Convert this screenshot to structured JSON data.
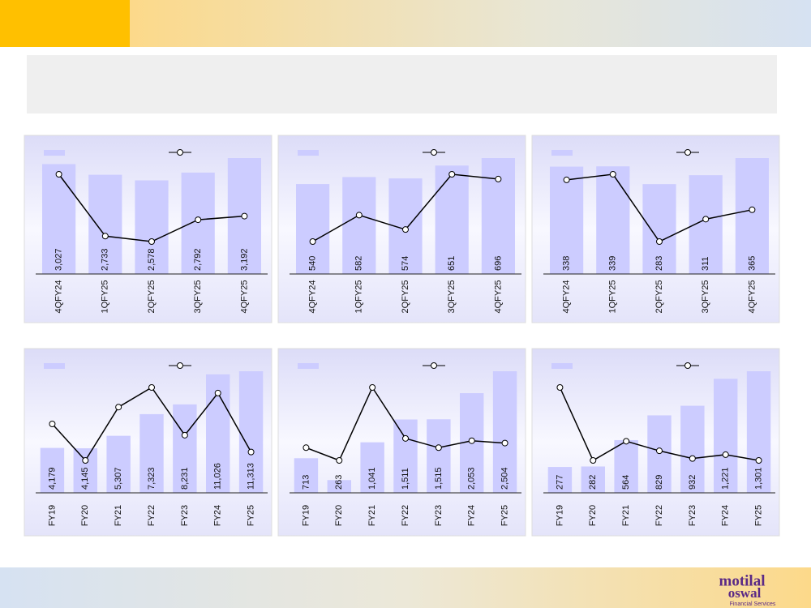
{
  "logo": {
    "line1": "motilal",
    "line2": "oswal",
    "tagline": "Financial Services"
  },
  "chart_data": [
    {
      "type": "combo",
      "categories": [
        "4QFY24",
        "1QFY25",
        "2QFY25",
        "3QFY25",
        "4QFY25"
      ],
      "series": [
        {
          "type": "bar",
          "color": "#ccccff",
          "values": [
            3027,
            2733,
            2578,
            2792,
            3192
          ],
          "value_labels": [
            "3,027",
            "2,733",
            "2,578",
            "2,792",
            "3,192"
          ]
        },
        {
          "type": "line",
          "color": "#000000",
          "values": [
            12.5,
            9.1,
            8.8,
            10.0,
            10.2
          ]
        }
      ]
    },
    {
      "type": "combo",
      "categories": [
        "4QFY24",
        "1QFY25",
        "2QFY25",
        "3QFY25",
        "4QFY25"
      ],
      "series": [
        {
          "type": "bar",
          "color": "#ccccff",
          "values": [
            540,
            582,
            574,
            651,
            696
          ]
        },
        {
          "type": "line",
          "color": "#000000",
          "values": [
            9.5,
            10.6,
            10.0,
            12.3,
            12.1
          ]
        }
      ]
    },
    {
      "type": "combo",
      "categories": [
        "4QFY24",
        "1QFY25",
        "2QFY25",
        "3QFY25",
        "4QFY25"
      ],
      "series": [
        {
          "type": "bar",
          "color": "#ccccff",
          "values": [
            338,
            339,
            283,
            311,
            365
          ]
        },
        {
          "type": "line",
          "color": "#000000",
          "values": [
            11.2,
            11.5,
            7.9,
            9.1,
            9.6
          ]
        }
      ]
    },
    {
      "type": "combo",
      "categories": [
        "FY19",
        "FY20",
        "FY21",
        "FY22",
        "FY23",
        "FY24",
        "FY25"
      ],
      "series": [
        {
          "type": "bar",
          "color": "#ccccff",
          "values": [
            4179,
            4145,
            5307,
            7323,
            8231,
            11026,
            11313
          ],
          "value_labels": [
            "4,179",
            "4,145",
            "5,307",
            "7,323",
            "8,231",
            "11,026",
            "11,313"
          ]
        },
        {
          "type": "line",
          "color": "#000000",
          "values": [
            11.5,
            10.2,
            12.1,
            12.8,
            11.1,
            12.6,
            10.5
          ]
        }
      ]
    },
    {
      "type": "combo",
      "categories": [
        "FY19",
        "FY20",
        "FY21",
        "FY22",
        "FY23",
        "FY24",
        "FY25"
      ],
      "series": [
        {
          "type": "bar",
          "color": "#ccccff",
          "values": [
            713,
            263,
            1041,
            1511,
            1515,
            2053,
            2504
          ],
          "value_labels": [
            "713",
            "263",
            "1,041",
            "1,511",
            "1,515",
            "2,053",
            "2,504"
          ]
        },
        {
          "type": "line",
          "color": "#000000",
          "values": [
            4.5,
            3.4,
            9.7,
            5.3,
            4.5,
            5.1,
            4.9
          ]
        }
      ]
    },
    {
      "type": "combo",
      "categories": [
        "FY19",
        "FY20",
        "FY21",
        "FY22",
        "FY23",
        "FY24",
        "FY25"
      ],
      "series": [
        {
          "type": "bar",
          "color": "#ccccff",
          "values": [
            277,
            282,
            564,
            829,
            932,
            1221,
            1301
          ],
          "value_labels": [
            "277",
            "282",
            "564",
            "829",
            "932",
            "1,221",
            "1,301"
          ]
        },
        {
          "type": "line",
          "color": "#000000",
          "values": [
            15.4,
            11.6,
            12.6,
            12.1,
            11.7,
            11.9,
            11.6
          ]
        }
      ]
    }
  ]
}
